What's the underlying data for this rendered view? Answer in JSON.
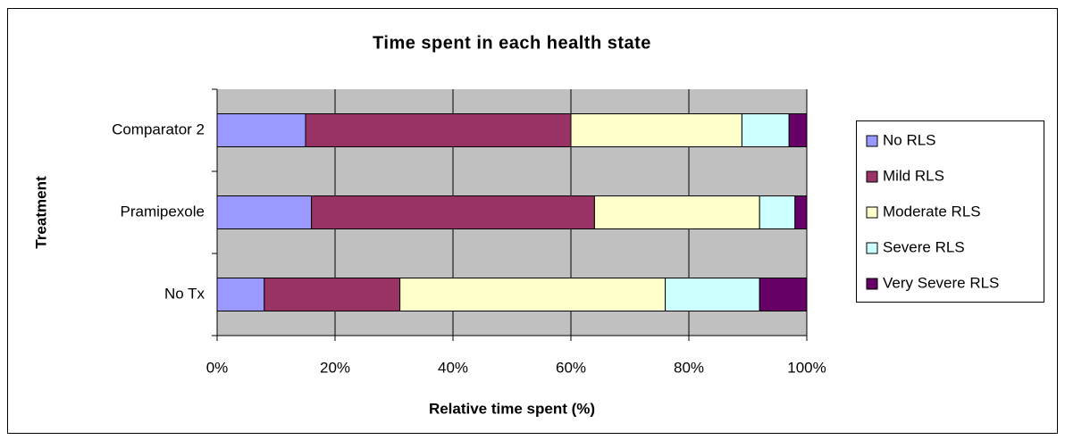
{
  "chart_data": {
    "type": "stacked-bar-horizontal",
    "title": "Time spent in each health state",
    "x_label": "Relative time spent (%)",
    "y_label": "Treatment",
    "categories": [
      "Comparator 2",
      "Pramipexole",
      "No Tx"
    ],
    "series": [
      {
        "name": "No RLS",
        "color": "#9999ff",
        "values": [
          15,
          16,
          8
        ]
      },
      {
        "name": "Mild RLS",
        "color": "#993366",
        "values": [
          45,
          48,
          23
        ]
      },
      {
        "name": "Moderate RLS",
        "color": "#ffffcc",
        "values": [
          29,
          28,
          45
        ]
      },
      {
        "name": "Severe RLS",
        "color": "#ccffff",
        "values": [
          8,
          6,
          16
        ]
      },
      {
        "name": "Very Severe RLS",
        "color": "#660066",
        "values": [
          3,
          2,
          8
        ]
      }
    ],
    "xlim": [
      0,
      100
    ],
    "xticks": [
      {
        "value": 0,
        "label": "0%"
      },
      {
        "value": 20,
        "label": "20%"
      },
      {
        "value": 40,
        "label": "40%"
      },
      {
        "value": 60,
        "label": "60%"
      },
      {
        "value": 80,
        "label": "80%"
      },
      {
        "value": 100,
        "label": "100%"
      }
    ],
    "grid": true,
    "legend": "right"
  }
}
